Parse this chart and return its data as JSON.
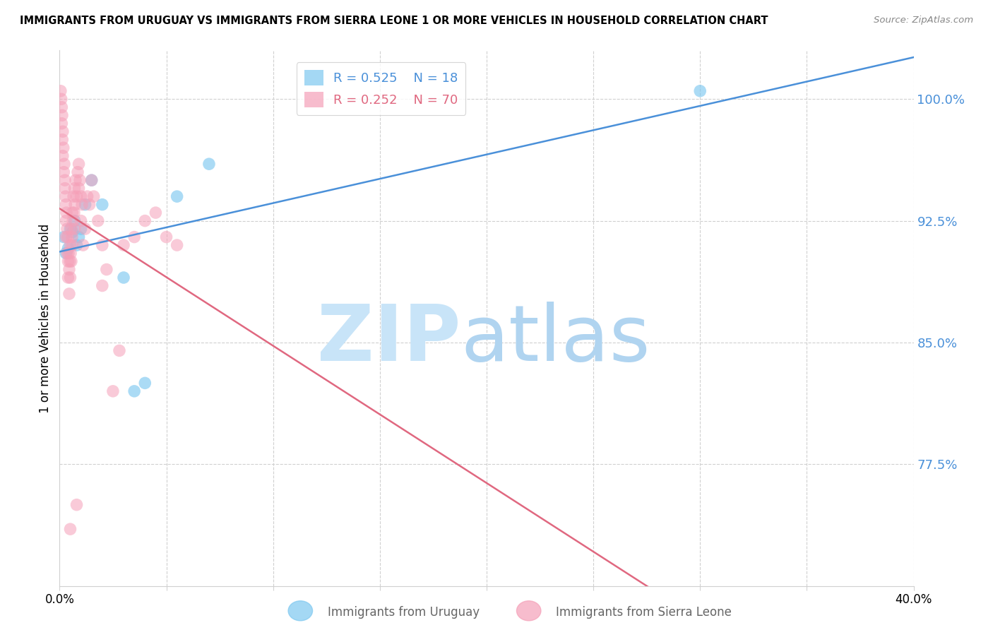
{
  "title": "IMMIGRANTS FROM URUGUAY VS IMMIGRANTS FROM SIERRA LEONE 1 OR MORE VEHICLES IN HOUSEHOLD CORRELATION CHART",
  "source": "Source: ZipAtlas.com",
  "ylabel": "1 or more Vehicles in Household",
  "xlim": [
    0.0,
    40.0
  ],
  "ylim": [
    70.0,
    103.0
  ],
  "yticks": [
    77.5,
    85.0,
    92.5,
    100.0
  ],
  "xticks": [
    0.0,
    5.0,
    10.0,
    15.0,
    20.0,
    25.0,
    30.0,
    35.0,
    40.0
  ],
  "legend_r_uruguay": "R = 0.525",
  "legend_n_uruguay": "N = 18",
  "legend_r_sierra": "R = 0.252",
  "legend_n_sierra": "N = 70",
  "uruguay_color": "#7ec8f0",
  "sierra_color": "#f5a0b8",
  "uruguay_line_color": "#4a90d9",
  "sierra_line_color": "#e06880",
  "watermark_zip_color": "#c8e4f8",
  "watermark_atlas_color": "#b0d4f0",
  "uru_x": [
    0.2,
    0.3,
    0.4,
    0.5,
    0.6,
    0.7,
    0.8,
    0.9,
    1.0,
    1.2,
    1.5,
    2.0,
    3.0,
    3.5,
    4.0,
    5.5,
    7.0,
    30.0
  ],
  "uru_y": [
    91.5,
    90.5,
    90.8,
    92.0,
    91.8,
    92.5,
    91.0,
    91.5,
    92.0,
    93.5,
    95.0,
    93.5,
    89.0,
    82.0,
    82.5,
    94.0,
    96.0,
    100.5
  ],
  "sl_x": [
    0.05,
    0.08,
    0.1,
    0.1,
    0.12,
    0.13,
    0.15,
    0.15,
    0.18,
    0.2,
    0.22,
    0.25,
    0.25,
    0.28,
    0.3,
    0.3,
    0.3,
    0.32,
    0.35,
    0.35,
    0.38,
    0.4,
    0.4,
    0.42,
    0.45,
    0.45,
    0.48,
    0.5,
    0.5,
    0.52,
    0.55,
    0.55,
    0.58,
    0.6,
    0.6,
    0.62,
    0.65,
    0.68,
    0.7,
    0.7,
    0.72,
    0.75,
    0.8,
    0.85,
    0.9,
    0.9,
    0.95,
    1.0,
    1.0,
    1.05,
    1.1,
    1.2,
    1.3,
    1.4,
    1.5,
    1.6,
    1.8,
    2.0,
    2.0,
    2.2,
    2.5,
    2.8,
    3.0,
    3.5,
    4.0,
    4.5,
    5.0,
    5.5,
    0.5,
    0.8
  ],
  "sl_y": [
    100.5,
    100.0,
    99.5,
    98.5,
    99.0,
    97.5,
    98.0,
    96.5,
    97.0,
    95.5,
    96.0,
    94.5,
    95.0,
    94.0,
    93.5,
    92.5,
    91.5,
    93.0,
    92.0,
    90.5,
    91.5,
    90.0,
    89.0,
    90.5,
    89.5,
    88.0,
    90.0,
    91.0,
    89.0,
    90.5,
    92.0,
    90.0,
    91.5,
    93.0,
    91.0,
    92.5,
    94.0,
    93.0,
    94.5,
    92.0,
    93.5,
    95.0,
    94.0,
    95.5,
    96.0,
    94.5,
    95.0,
    94.0,
    92.5,
    93.5,
    91.0,
    92.0,
    94.0,
    93.5,
    95.0,
    94.0,
    92.5,
    91.0,
    88.5,
    89.5,
    82.0,
    84.5,
    91.0,
    91.5,
    92.5,
    93.0,
    91.5,
    91.0,
    73.5,
    75.0
  ]
}
